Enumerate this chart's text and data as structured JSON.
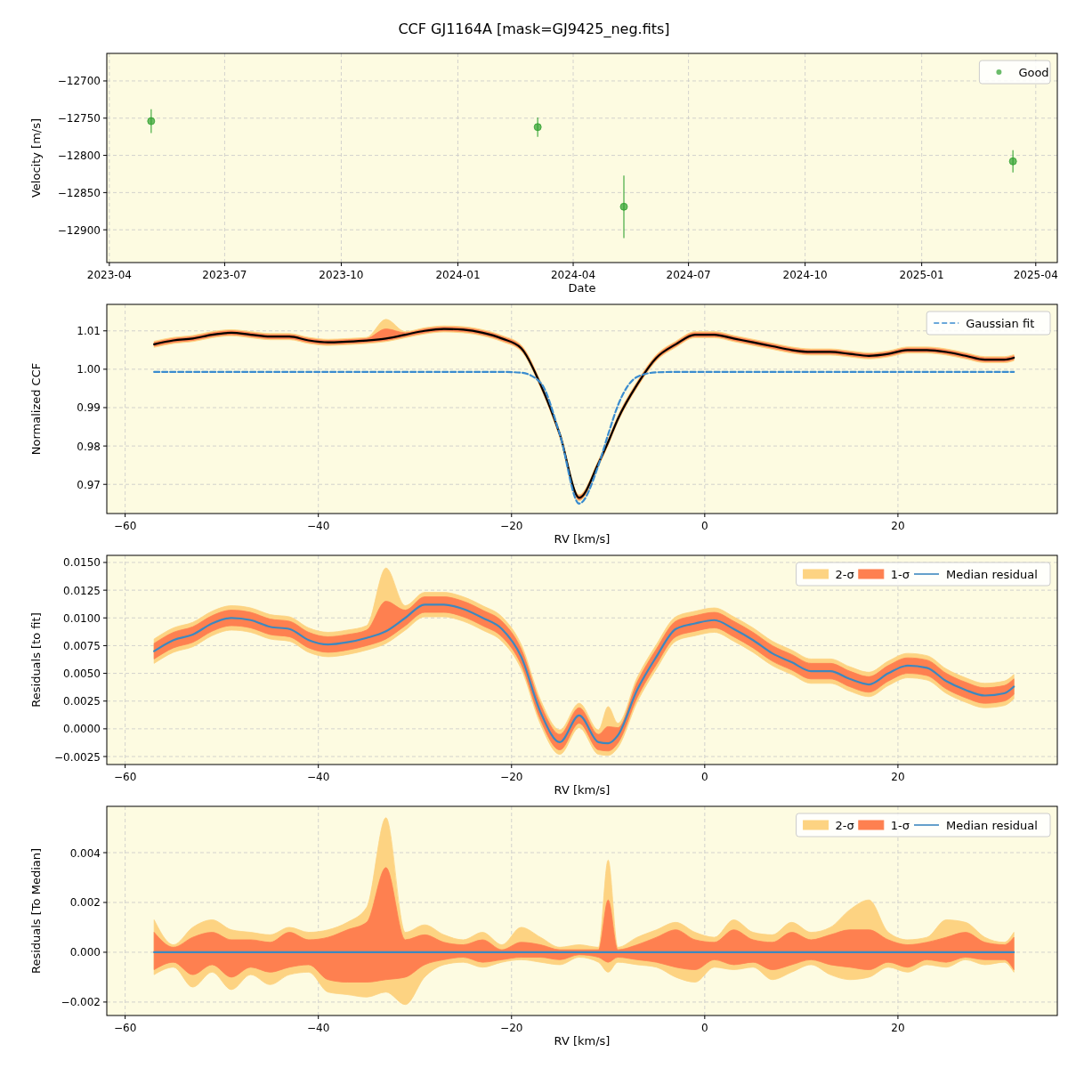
{
  "chart_data": [
    {
      "type": "scatter",
      "title": "CCF GJ1164A [mask=GJ9425_neg.fits]",
      "xlabel": "Date",
      "ylabel": "Velocity [m/s]",
      "x": [
        "2023-05-04",
        "2024-03-04",
        "2024-05-11",
        "2025-03-14"
      ],
      "series": [
        {
          "name": "Good",
          "color": "#2ca02c",
          "values": [
            -12754,
            -12762,
            -12869,
            -12808
          ],
          "errors": [
            16,
            13,
            42,
            15
          ]
        }
      ],
      "xlim": [
        "2023-03-30",
        "2025-04-18"
      ],
      "xticks": [
        "2023-04",
        "2023-07",
        "2023-10",
        "2024-01",
        "2024-04",
        "2024-07",
        "2024-10",
        "2025-01",
        "2025-04"
      ],
      "ylim": [
        -12944,
        -12663
      ],
      "yticks": [
        {
          "value": -12900,
          "label": "−12900"
        },
        {
          "value": -12850,
          "label": "−12850"
        },
        {
          "value": -12800,
          "label": "−12800"
        },
        {
          "value": -12750,
          "label": "−12750"
        },
        {
          "value": -12700,
          "label": "−12700"
        }
      ],
      "grid": true,
      "legend": "top right",
      "marker": "circle"
    },
    {
      "type": "line",
      "xlabel": "RV [km/s]",
      "ylabel": "Normalized CCF",
      "x": [
        -57,
        -55,
        -53,
        -51,
        -49,
        -47,
        -45,
        -43,
        -41,
        -39,
        -37,
        -35,
        -33,
        -31,
        -29,
        -27,
        -25,
        -23,
        -21,
        -19,
        -17,
        -15,
        -13,
        -11,
        -10,
        -9,
        -7,
        -5,
        -3,
        -1,
        1,
        3,
        5,
        7,
        9,
        11,
        13,
        15,
        17,
        19,
        21,
        23,
        25,
        27,
        29,
        31,
        32
      ],
      "series": [
        {
          "type": "line",
          "color": "#fdd382",
          "values": [
            null,
            null,
            null,
            null,
            null,
            null,
            null,
            null,
            null,
            null,
            null,
            null,
            null,
            null,
            null,
            null,
            null,
            null,
            null,
            null,
            null,
            null,
            null,
            null,
            null,
            null,
            null,
            null,
            null,
            null,
            null,
            null,
            null,
            null,
            null,
            null,
            null,
            null,
            null,
            null,
            null,
            null,
            null,
            null,
            null,
            null,
            null
          ],
          "lower": [
            1.0057,
            1.0067,
            1.0072,
            1.0082,
            1.0087,
            1.0082,
            1.0077,
            1.0077,
            1.0067,
            1.0062,
            1.0064,
            1.0067,
            1.0072,
            1.0082,
            1.0092,
            1.0097,
            1.0095,
            1.0087,
            1.0072,
            1.0047,
            0.9952,
            0.9822,
            0.9657,
            0.9747,
            0.9802,
            0.9862,
            0.9952,
            1.0022,
            1.0057,
            1.0082,
            1.0082,
            1.0072,
            1.0062,
            1.0052,
            1.0042,
            1.0037,
            1.0037,
            1.0032,
            1.0027,
            1.0032,
            1.0042,
            1.0042,
            1.0037,
            1.0027,
            1.0017,
            1.0017,
            1.0022
          ],
          "upper": [
            1.0073,
            1.0083,
            1.0088,
            1.0098,
            1.0103,
            1.0098,
            1.0093,
            1.0093,
            1.0083,
            1.0078,
            1.008,
            1.0083,
            1.013,
            1.0098,
            1.0108,
            1.0113,
            1.0111,
            1.0103,
            1.0088,
            1.0063,
            0.9968,
            0.9838,
            0.9673,
            0.9763,
            0.9818,
            0.9878,
            0.9968,
            1.0038,
            1.0073,
            1.0098,
            1.0098,
            1.0088,
            1.0078,
            1.0068,
            1.0058,
            1.0053,
            1.0053,
            1.0048,
            1.0043,
            1.0048,
            1.0058,
            1.0058,
            1.0053,
            1.0043,
            1.0033,
            1.0033,
            1.0038
          ]
        },
        {
          "type": "line",
          "color": "#fe8050",
          "values": [
            null,
            null,
            null,
            null,
            null,
            null,
            null,
            null,
            null,
            null,
            null,
            null,
            null,
            null,
            null,
            null,
            null,
            null,
            null,
            null,
            null,
            null,
            null,
            null,
            null,
            null,
            null,
            null,
            null,
            null,
            null,
            null,
            null,
            null,
            null,
            null,
            null,
            null,
            null,
            null,
            null,
            null,
            null,
            null,
            null,
            null,
            null
          ],
          "lower": [
            1.006,
            1.007,
            1.0075,
            1.0085,
            1.009,
            1.0085,
            1.008,
            1.008,
            1.007,
            1.0065,
            1.0067,
            1.007,
            1.0075,
            1.0085,
            1.0095,
            1.01,
            1.0098,
            1.009,
            1.0075,
            1.005,
            0.9955,
            0.9825,
            0.966,
            0.975,
            0.9805,
            0.9865,
            0.9955,
            1.0025,
            1.006,
            1.0085,
            1.0085,
            1.0075,
            1.0065,
            1.0055,
            1.0045,
            1.004,
            1.004,
            1.0035,
            1.003,
            1.0035,
            1.0045,
            1.0045,
            1.004,
            1.003,
            1.002,
            1.002,
            1.0025
          ],
          "upper": [
            1.007,
            1.008,
            1.0085,
            1.0095,
            1.01,
            1.0095,
            1.009,
            1.009,
            1.008,
            1.0075,
            1.0077,
            1.008,
            1.0105,
            1.0095,
            1.0105,
            1.011,
            1.0108,
            1.01,
            1.0085,
            1.006,
            0.9965,
            0.9835,
            0.967,
            0.976,
            0.9815,
            0.9875,
            0.9965,
            1.0035,
            1.007,
            1.0095,
            1.0095,
            1.0085,
            1.0075,
            1.0065,
            1.0055,
            1.005,
            1.005,
            1.0045,
            1.004,
            1.0045,
            1.0055,
            1.0055,
            1.005,
            1.004,
            1.003,
            1.003,
            1.0035
          ]
        },
        {
          "type": "line",
          "color": "#000000",
          "values": [
            1.0065,
            1.0075,
            1.008,
            1.009,
            1.0095,
            1.009,
            1.0085,
            1.0085,
            1.0075,
            1.007,
            1.0072,
            1.0075,
            1.008,
            1.009,
            1.01,
            1.0105,
            1.0103,
            1.0095,
            1.008,
            1.0055,
            0.996,
            0.983,
            0.9665,
            0.9755,
            0.981,
            0.987,
            0.996,
            1.003,
            1.0065,
            1.009,
            1.009,
            1.008,
            1.007,
            1.006,
            1.005,
            1.0045,
            1.0045,
            1.004,
            1.0035,
            1.004,
            1.005,
            1.005,
            1.0045,
            1.0035,
            1.0025,
            1.0025,
            1.003
          ]
        },
        {
          "type": "line",
          "name": "Gaussian fit",
          "color": "#3a8ccf",
          "line_style": "dashed",
          "values": [
            0.9993,
            0.9993,
            0.9993,
            0.9993,
            0.9993,
            0.9993,
            0.9993,
            0.9993,
            0.9993,
            0.9993,
            0.9993,
            0.9993,
            0.9993,
            0.9993,
            0.9993,
            0.9993,
            0.9993,
            0.9993,
            0.9993,
            0.9991,
            0.9965,
            0.983,
            0.965,
            0.975,
            0.983,
            0.9905,
            0.998,
            0.9992,
            0.9993,
            0.9993,
            0.9993,
            0.9993,
            0.9993,
            0.9993,
            0.9993,
            0.9993,
            0.9993,
            0.9993,
            0.9993,
            0.9993,
            0.9993,
            0.9993,
            0.9993,
            0.9993,
            0.9993,
            0.9993,
            0.9993
          ]
        }
      ],
      "xlim": [
        -61.9,
        36.5
      ],
      "xticks": [
        -60,
        -40,
        -20,
        0,
        20
      ],
      "ylim": [
        0.9624,
        1.0169
      ],
      "yticks": [
        {
          "value": 0.97,
          "label": "0.97"
        },
        {
          "value": 0.98,
          "label": "0.98"
        },
        {
          "value": 0.99,
          "label": "0.99"
        },
        {
          "value": 1,
          "label": "1.00"
        },
        {
          "value": 1.01,
          "label": "1.01"
        }
      ],
      "grid": true,
      "legend": "top right"
    },
    {
      "type": "line",
      "xlabel": "RV [km/s]",
      "ylabel": "Residuals [to fit]",
      "x": [
        -57,
        -55,
        -53,
        -51,
        -49,
        -47,
        -45,
        -43,
        -41,
        -39,
        -37,
        -35,
        -33,
        -31,
        -29,
        -27,
        -25,
        -23,
        -21,
        -19,
        -17,
        -15,
        -13,
        -11,
        -10,
        -9,
        -7,
        -5,
        -3,
        -1,
        1,
        3,
        5,
        7,
        9,
        11,
        13,
        15,
        17,
        19,
        21,
        23,
        25,
        27,
        29,
        31,
        32
      ],
      "series": [
        {
          "type": "line",
          "name": "2-σ",
          "color": "#fdd382",
          "values": [
            null,
            null,
            null,
            null,
            null,
            null,
            null,
            null,
            null,
            null,
            null,
            null,
            null,
            null,
            null,
            null,
            null,
            null,
            null,
            null,
            null,
            null,
            null,
            null,
            null,
            null,
            null,
            null,
            null,
            null,
            null,
            null,
            null,
            null,
            null,
            null,
            null,
            null,
            null,
            null,
            null,
            null,
            null,
            null,
            null,
            null,
            null
          ],
          "lower": [
            0.0059,
            0.0069,
            0.0074,
            0.0084,
            0.0089,
            0.0087,
            0.0081,
            0.0079,
            0.0069,
            0.0065,
            0.0067,
            0.0071,
            0.0077,
            0.0089,
            0.0101,
            0.0101,
            0.0097,
            0.0089,
            0.0079,
            0.0054,
            0.0004,
            -0.0023,
            0.0001,
            -0.0023,
            -0.0024,
            -0.0017,
            0.0024,
            0.0054,
            0.0079,
            0.0084,
            0.0087,
            0.0079,
            0.0069,
            0.0057,
            0.0049,
            0.0041,
            0.0041,
            0.0034,
            0.0029,
            0.0039,
            0.0046,
            0.0044,
            0.0032,
            0.0024,
            0.0019,
            0.0021,
            0.0027
          ],
          "upper": [
            0.0081,
            0.0091,
            0.0096,
            0.0106,
            0.0111,
            0.0109,
            0.0103,
            0.0101,
            0.0091,
            0.0087,
            0.0089,
            0.0093,
            0.0145,
            0.0111,
            0.0123,
            0.0123,
            0.0119,
            0.0111,
            0.0101,
            0.0076,
            0.0026,
            -0.0001,
            0.0023,
            -0.0001,
            0.002,
            0.0005,
            0.0046,
            0.0076,
            0.0101,
            0.0106,
            0.0109,
            0.0101,
            0.0091,
            0.0079,
            0.0071,
            0.0063,
            0.0063,
            0.0056,
            0.0051,
            0.0061,
            0.0068,
            0.0066,
            0.0054,
            0.0046,
            0.0041,
            0.0043,
            0.0049
          ]
        },
        {
          "type": "line",
          "name": "1-σ",
          "color": "#fe8050",
          "values": [
            null,
            null,
            null,
            null,
            null,
            null,
            null,
            null,
            null,
            null,
            null,
            null,
            null,
            null,
            null,
            null,
            null,
            null,
            null,
            null,
            null,
            null,
            null,
            null,
            null,
            null,
            null,
            null,
            null,
            null,
            null,
            null,
            null,
            null,
            null,
            null,
            null,
            null,
            null,
            null,
            null,
            null,
            null,
            null,
            null,
            null,
            null
          ],
          "lower": [
            0.0063,
            0.0073,
            0.0078,
            0.0088,
            0.0093,
            0.0091,
            0.0085,
            0.0083,
            0.0073,
            0.0069,
            0.0071,
            0.0075,
            0.0081,
            0.0093,
            0.0105,
            0.0105,
            0.0101,
            0.0093,
            0.0083,
            0.0058,
            0.0008,
            -0.0019,
            0.0005,
            -0.0019,
            -0.002,
            -0.0013,
            0.0028,
            0.0058,
            0.0083,
            0.0088,
            0.0091,
            0.0083,
            0.0073,
            0.0061,
            0.0053,
            0.0045,
            0.0045,
            0.0038,
            0.0033,
            0.0043,
            0.005,
            0.0048,
            0.0036,
            0.0028,
            0.0023,
            0.0025,
            0.0031
          ],
          "upper": [
            0.0077,
            0.0087,
            0.0092,
            0.0102,
            0.0107,
            0.0105,
            0.0099,
            0.0097,
            0.0087,
            0.0083,
            0.0085,
            0.0089,
            0.0115,
            0.0107,
            0.0119,
            0.0119,
            0.0115,
            0.0107,
            0.0097,
            0.0072,
            0.0022,
            -0.0005,
            0.0019,
            -0.0005,
            0.0002,
            0.0001,
            0.0042,
            0.0072,
            0.0097,
            0.0102,
            0.0105,
            0.0097,
            0.0087,
            0.0075,
            0.0067,
            0.0059,
            0.0059,
            0.0052,
            0.0047,
            0.0057,
            0.0064,
            0.0062,
            0.005,
            0.0042,
            0.0037,
            0.0039,
            0.0045
          ]
        },
        {
          "type": "line",
          "name": "Median residual",
          "color": "#3d88bf",
          "values": [
            0.007,
            0.008,
            0.0085,
            0.0095,
            0.01,
            0.0098,
            0.0092,
            0.009,
            0.008,
            0.0076,
            0.0078,
            0.0082,
            0.0088,
            0.01,
            0.0112,
            0.0112,
            0.0108,
            0.01,
            0.009,
            0.0065,
            0.0015,
            -0.0012,
            0.0012,
            -0.0012,
            -0.0013,
            -0.0006,
            0.0035,
            0.0065,
            0.009,
            0.0095,
            0.0098,
            0.009,
            0.008,
            0.0068,
            0.006,
            0.0052,
            0.0052,
            0.0045,
            0.004,
            0.005,
            0.0057,
            0.0055,
            0.0043,
            0.0035,
            0.003,
            0.0032,
            0.0038
          ]
        }
      ],
      "xlim": [
        -61.9,
        36.5
      ],
      "xticks": [
        -60,
        -40,
        -20,
        0,
        20
      ],
      "ylim": [
        -0.00322,
        0.01564
      ],
      "yticks": [
        {
          "value": -0.0025,
          "label": "−0.0025"
        },
        {
          "value": 0,
          "label": "0.0000"
        },
        {
          "value": 0.0025,
          "label": "0.0025"
        },
        {
          "value": 0.005,
          "label": "0.0050"
        },
        {
          "value": 0.0075,
          "label": "0.0075"
        },
        {
          "value": 0.01,
          "label": "0.0100"
        },
        {
          "value": 0.0125,
          "label": "0.0125"
        },
        {
          "value": 0.015,
          "label": "0.0150"
        }
      ],
      "grid": true,
      "legend": "top right"
    },
    {
      "type": "line",
      "xlabel": "RV [km/s]",
      "ylabel": "Residuals [To Median]",
      "x": [
        -57,
        -55,
        -53,
        -51,
        -49,
        -47,
        -45,
        -43,
        -41,
        -39,
        -37,
        -35,
        -33,
        -31,
        -29,
        -27,
        -25,
        -23,
        -21,
        -19,
        -17,
        -15,
        -13,
        -11,
        -10,
        -9,
        -7,
        -5,
        -3,
        -1,
        1,
        3,
        5,
        7,
        9,
        11,
        13,
        15,
        17,
        19,
        21,
        23,
        25,
        27,
        29,
        31,
        32
      ],
      "series": [
        {
          "type": "line",
          "name": "2-σ",
          "color": "#fdd382",
          "values": [
            null,
            null,
            null,
            null,
            null,
            null,
            null,
            null,
            null,
            null,
            null,
            null,
            null,
            null,
            null,
            null,
            null,
            null,
            null,
            null,
            null,
            null,
            null,
            null,
            null,
            null,
            null,
            null,
            null,
            null,
            null,
            null,
            null,
            null,
            null,
            null,
            null,
            null,
            null,
            null,
            null,
            null,
            null,
            null,
            null,
            null,
            null
          ],
          "lower": [
            -0.0009,
            -0.0006,
            -0.0014,
            -0.0008,
            -0.0015,
            -0.0009,
            -0.0013,
            -0.0009,
            -0.0008,
            -0.0016,
            -0.0017,
            -0.0018,
            -0.0016,
            -0.0021,
            -0.001,
            -0.0005,
            -0.0004,
            -0.0006,
            -0.0004,
            -0.0003,
            -0.0004,
            -0.0005,
            -0.0002,
            -0.0004,
            -0.0008,
            -0.0004,
            -0.0005,
            -0.0006,
            -0.001,
            -0.0012,
            -0.0006,
            -0.0007,
            -0.0006,
            -0.0011,
            -0.0008,
            -0.0005,
            -0.0009,
            -0.0011,
            -0.001,
            -0.0006,
            -0.0008,
            -0.0005,
            -0.0006,
            -0.0003,
            -0.0005,
            -0.0004,
            -0.0008
          ],
          "upper": [
            0.0013,
            0.0003,
            0.001,
            0.0013,
            0.0009,
            0.0008,
            0.0007,
            0.001,
            0.0008,
            0.0009,
            0.0012,
            0.0018,
            0.0054,
            0.0008,
            0.0011,
            0.0007,
            0.0005,
            0.0008,
            0.0003,
            0.001,
            0.0006,
            0.0002,
            0.0003,
            0.0002,
            0.0037,
            0.0002,
            0.0006,
            0.0009,
            0.0012,
            0.0008,
            0.0006,
            0.0013,
            0.0008,
            0.0007,
            0.0012,
            0.0008,
            0.001,
            0.0017,
            0.0021,
            0.0008,
            0.0005,
            0.0006,
            0.0013,
            0.0012,
            0.0006,
            0.0004,
            0.0008
          ]
        },
        {
          "type": "line",
          "name": "1-σ",
          "color": "#fe8050",
          "values": [
            null,
            null,
            null,
            null,
            null,
            null,
            null,
            null,
            null,
            null,
            null,
            null,
            null,
            null,
            null,
            null,
            null,
            null,
            null,
            null,
            null,
            null,
            null,
            null,
            null,
            null,
            null,
            null,
            null,
            null,
            null,
            null,
            null,
            null,
            null,
            null,
            null,
            null,
            null,
            null,
            null,
            null,
            null,
            null,
            null,
            null,
            null
          ],
          "lower": [
            -0.0007,
            -0.0004,
            -0.0009,
            -0.0005,
            -0.001,
            -0.0006,
            -0.0008,
            -0.0006,
            -0.0005,
            -0.0011,
            -0.0012,
            -0.0012,
            -0.0011,
            -0.001,
            -0.0005,
            -0.0003,
            -0.0002,
            -0.0004,
            -0.0003,
            -0.0002,
            -0.0002,
            -0.0003,
            -0.0001,
            -0.0002,
            -0.0004,
            -0.0002,
            -0.0003,
            -0.0004,
            -0.0006,
            -0.0007,
            -0.0003,
            -0.0005,
            -0.0004,
            -0.0007,
            -0.0005,
            -0.0003,
            -0.0005,
            -0.0006,
            -0.0007,
            -0.0004,
            -0.0006,
            -0.0003,
            -0.0004,
            -0.0002,
            -0.0003,
            -0.0003,
            -0.0007
          ],
          "upper": [
            0.0008,
            0.0002,
            0.0006,
            0.0008,
            0.0005,
            0.0005,
            0.0004,
            0.0008,
            0.0005,
            0.0006,
            0.0009,
            0.0012,
            0.0034,
            0.0005,
            0.0007,
            0.0004,
            0.0003,
            0.0005,
            0.0001,
            0.0004,
            0.0003,
            0.0001,
            0.0001,
            0.0001,
            0.0021,
            0.0001,
            0.0003,
            0.0006,
            0.0009,
            0.0005,
            0.0004,
            0.0009,
            0.0005,
            0.0004,
            0.0008,
            0.0005,
            0.0007,
            0.0009,
            0.0009,
            0.0005,
            0.0003,
            0.0004,
            0.0006,
            0.0008,
            0.0004,
            0.0003,
            0.0006
          ]
        },
        {
          "type": "line",
          "name": "Median residual",
          "color": "#3d88bf",
          "values": [
            0,
            0,
            0,
            0,
            0,
            0,
            0,
            0,
            0,
            0,
            0,
            0,
            0,
            0,
            0,
            0,
            0,
            0,
            0,
            0,
            0,
            0,
            0,
            0,
            0,
            0,
            0,
            0,
            0,
            0,
            0,
            0,
            0,
            0,
            0,
            0,
            0,
            0,
            0,
            0,
            0,
            0,
            0,
            0,
            0,
            0,
            0
          ]
        }
      ],
      "xlim": [
        -61.9,
        36.5
      ],
      "xticks": [
        -60,
        -40,
        -20,
        0,
        20
      ],
      "ylim": [
        -0.00254,
        0.00586
      ],
      "yticks": [
        {
          "value": -0.002,
          "label": "−0.002"
        },
        {
          "value": 0,
          "label": "0.000"
        },
        {
          "value": 0.002,
          "label": "0.002"
        },
        {
          "value": 0.004,
          "label": "0.004"
        }
      ],
      "grid": true,
      "legend": "top right"
    }
  ]
}
